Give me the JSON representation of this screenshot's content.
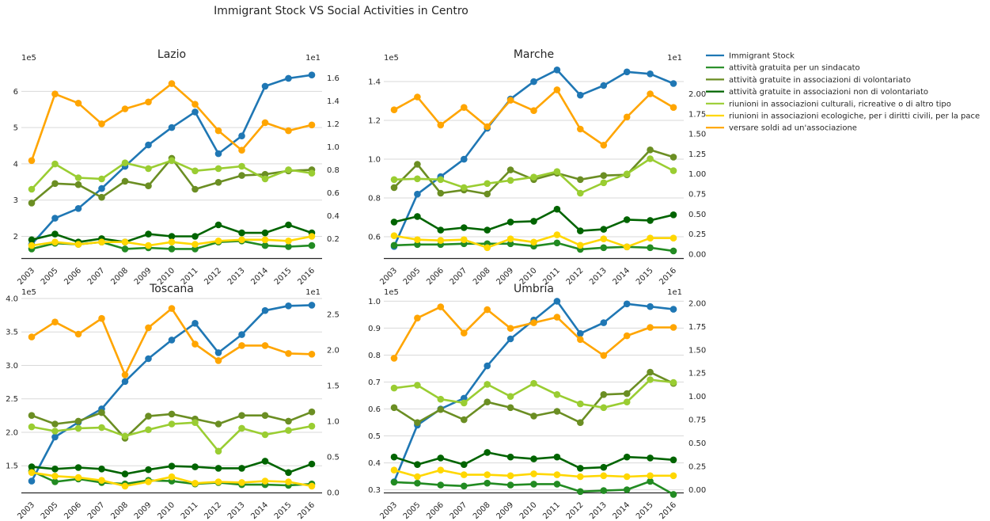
{
  "figure": {
    "suptitle": "Immigrant Stock VS Social Activities in Centro",
    "left_scale_label": "1e5",
    "right_scale_label": "1e1"
  },
  "legend": {
    "placement": "upper-right outside",
    "entries": [
      {
        "label": "Immigrant Stock",
        "color": "#1f77b4"
      },
      {
        "label": "attività gratuita per un sindacato",
        "color": "#228b22"
      },
      {
        "label": "attività gratuite in associazioni di volontariato",
        "color": "#6b8e23"
      },
      {
        "label": "attività gratuite in associazioni non di volontariato",
        "color": "#006400"
      },
      {
        "label": "riunioni in associazioni culturali, ricreative o di altro tipo",
        "color": "#9acd32"
      },
      {
        "label": "riunioni in associazioni ecologiche, per i diritti civili, per la pace",
        "color": "#ffd700"
      },
      {
        "label": "versare soldi ad un'associazione",
        "color": "#ffa500"
      }
    ]
  },
  "chart_data": [
    {
      "type": "line",
      "title": "Lazio",
      "categories": [
        "2003",
        "2005",
        "2006",
        "2007",
        "2008",
        "2009",
        "2010",
        "2011",
        "2012",
        "2013",
        "2014",
        "2015",
        "2016"
      ],
      "left_axis": {
        "multiplier": "1e5",
        "ylim": [
          1.4,
          6.75
        ],
        "ticks": [
          2,
          3,
          4,
          5,
          6
        ],
        "tick_labels": [
          "2",
          "3",
          "4",
          "5",
          "6"
        ]
      },
      "right_axis": {
        "multiplier": "1e1",
        "ylim": [
          0.03,
          1.72
        ],
        "ticks": [
          0.2,
          0.4,
          0.6,
          0.8,
          1.0,
          1.2,
          1.4,
          1.6
        ],
        "tick_labels": [
          "0.2",
          "0.4",
          "0.6",
          "0.8",
          "1.0",
          "1.2",
          "1.4",
          "1.6"
        ]
      },
      "series": [
        {
          "name": "Immigrant Stock",
          "axis": "left",
          "color": "#1f77b4",
          "values": [
            1.78,
            2.5,
            2.77,
            3.32,
            3.93,
            4.52,
            5.0,
            5.43,
            4.28,
            4.77,
            6.14,
            6.36,
            6.45
          ]
        },
        {
          "name": "attività gratuita per un sindacato",
          "axis": "right",
          "color": "#228b22",
          "values": [
            0.11,
            0.16,
            0.15,
            0.17,
            0.11,
            0.12,
            0.11,
            0.11,
            0.17,
            0.18,
            0.14,
            0.13,
            0.14
          ]
        },
        {
          "name": "attività gratuite in associazioni di volontariato",
          "axis": "right",
          "color": "#6b8e23",
          "values": [
            0.51,
            0.68,
            0.67,
            0.56,
            0.7,
            0.66,
            0.9,
            0.63,
            0.69,
            0.75,
            0.76,
            0.79,
            0.8
          ]
        },
        {
          "name": "attività gratuite in associazioni non di volontariato",
          "axis": "right",
          "color": "#006400",
          "values": [
            0.19,
            0.24,
            0.17,
            0.2,
            0.17,
            0.24,
            0.22,
            0.22,
            0.32,
            0.25,
            0.25,
            0.32,
            0.25
          ]
        },
        {
          "name": "riunioni in associazioni culturali, ricreative o di altro tipo",
          "axis": "right",
          "color": "#9acd32",
          "values": [
            0.63,
            0.85,
            0.73,
            0.72,
            0.86,
            0.81,
            0.88,
            0.79,
            0.81,
            0.83,
            0.72,
            0.8,
            0.77
          ]
        },
        {
          "name": "riunioni in associazioni ecologiche, per i diritti civili, per la pace",
          "axis": "right",
          "color": "#ffd700",
          "values": [
            0.14,
            0.17,
            0.15,
            0.17,
            0.17,
            0.14,
            0.17,
            0.15,
            0.18,
            0.19,
            0.19,
            0.18,
            0.22
          ]
        },
        {
          "name": "versare soldi ad un'associazione",
          "axis": "right",
          "color": "#ffa500",
          "values": [
            0.88,
            1.46,
            1.38,
            1.2,
            1.33,
            1.39,
            1.55,
            1.37,
            1.14,
            0.97,
            1.21,
            1.14,
            1.19
          ]
        }
      ]
    },
    {
      "type": "line",
      "title": "Marche",
      "categories": [
        "2003",
        "2005",
        "2006",
        "2007",
        "2008",
        "2009",
        "2010",
        "2011",
        "2012",
        "2013",
        "2014",
        "2015",
        "2016"
      ],
      "left_axis": {
        "multiplier": "1e5",
        "ylim": [
          0.49,
          1.49
        ],
        "ticks": [
          0.6,
          0.8,
          1.0,
          1.2,
          1.4
        ],
        "tick_labels": [
          "0.6",
          "0.8",
          "1.0",
          "1.2",
          "1.4"
        ]
      },
      "right_axis": {
        "multiplier": "1e1",
        "ylim": [
          -0.05,
          2.37
        ],
        "ticks": [
          0,
          0.25,
          0.5,
          0.75,
          1.0,
          1.25,
          1.5,
          1.75,
          2.0
        ],
        "tick_labels": [
          "0.00",
          "0.25",
          "0.50",
          "0.75",
          "1.00",
          "1.25",
          "1.50",
          "1.75",
          "2.00"
        ]
      },
      "series": [
        {
          "name": "Immigrant Stock",
          "axis": "left",
          "color": "#1f77b4",
          "values": [
            0.55,
            0.82,
            0.91,
            1.0,
            1.16,
            1.31,
            1.4,
            1.46,
            1.33,
            1.38,
            1.45,
            1.44,
            1.39
          ]
        },
        {
          "name": "attività gratuita per un sindacato",
          "axis": "right",
          "color": "#228b22",
          "values": [
            0.11,
            0.12,
            0.12,
            0.13,
            0.13,
            0.13,
            0.1,
            0.14,
            0.06,
            0.08,
            0.09,
            0.08,
            0.04
          ]
        },
        {
          "name": "attività gratuite in associazioni di volontariato",
          "axis": "right",
          "color": "#6b8e23",
          "values": [
            0.83,
            1.12,
            0.76,
            0.8,
            0.75,
            1.05,
            0.93,
            1.01,
            0.93,
            0.98,
            0.99,
            1.3,
            1.21
          ]
        },
        {
          "name": "attività gratuite in associazioni non di volontariato",
          "axis": "right",
          "color": "#006400",
          "values": [
            0.4,
            0.47,
            0.3,
            0.33,
            0.3,
            0.4,
            0.41,
            0.56,
            0.29,
            0.31,
            0.43,
            0.42,
            0.49
          ]
        },
        {
          "name": "riunioni in associazioni culturali, ricreative o di altro tipo",
          "axis": "right",
          "color": "#9acd32",
          "values": [
            0.93,
            0.94,
            0.93,
            0.83,
            0.88,
            0.92,
            0.96,
            1.03,
            0.76,
            0.89,
            1.0,
            1.19,
            1.04
          ]
        },
        {
          "name": "riunioni in associazioni ecologiche, per i diritti civili, per la pace",
          "axis": "right",
          "color": "#ffd700",
          "values": [
            0.23,
            0.18,
            0.17,
            0.18,
            0.08,
            0.19,
            0.15,
            0.24,
            0.11,
            0.19,
            0.09,
            0.2,
            0.2
          ]
        },
        {
          "name": "versare soldi ad un'associazione",
          "axis": "right",
          "color": "#ffa500",
          "values": [
            1.8,
            1.96,
            1.61,
            1.83,
            1.59,
            1.92,
            1.79,
            2.05,
            1.56,
            1.36,
            1.71,
            2.0,
            1.83
          ]
        }
      ]
    },
    {
      "type": "line",
      "title": "Toscana",
      "categories": [
        "2003",
        "2005",
        "2006",
        "2007",
        "2008",
        "2009",
        "2010",
        "2011",
        "2012",
        "2013",
        "2014",
        "2015",
        "2016"
      ],
      "left_axis": {
        "multiplier": "1e5",
        "ylim": [
          1.1,
          4.0
        ],
        "ticks": [
          1.5,
          2.0,
          2.5,
          3.0,
          3.5,
          4.0
        ],
        "tick_labels": [
          "1.5",
          "2.0",
          "2.5",
          "3.0",
          "3.5",
          "4.0"
        ]
      },
      "right_axis": {
        "multiplier": "1e1",
        "ylim": [
          0.0,
          2.72
        ],
        "ticks": [
          0,
          0.5,
          1.0,
          1.5,
          2.0,
          2.5
        ],
        "tick_labels": [
          "0.0",
          "0.5",
          "1.0",
          "1.5",
          "2.0",
          "2.5"
        ]
      },
      "series": [
        {
          "name": "Immigrant Stock",
          "axis": "left",
          "color": "#1f77b4",
          "values": [
            1.27,
            1.93,
            2.15,
            2.35,
            2.76,
            3.1,
            3.38,
            3.63,
            3.19,
            3.46,
            3.82,
            3.89,
            3.9
          ]
        },
        {
          "name": "attività gratuita per un sindacato",
          "axis": "right",
          "color": "#228b22",
          "values": [
            0.3,
            0.15,
            0.19,
            0.14,
            0.12,
            0.17,
            0.16,
            0.12,
            0.14,
            0.11,
            0.11,
            0.1,
            0.12
          ]
        },
        {
          "name": "attività gratuite in associazioni di volontariato",
          "axis": "right",
          "color": "#6b8e23",
          "values": [
            1.08,
            0.96,
            1.0,
            1.12,
            0.76,
            1.07,
            1.1,
            1.03,
            0.96,
            1.08,
            1.08,
            1.0,
            1.13
          ]
        },
        {
          "name": "attività gratuite in associazioni non di volontariato",
          "axis": "right",
          "color": "#006400",
          "values": [
            0.36,
            0.33,
            0.35,
            0.33,
            0.26,
            0.32,
            0.37,
            0.36,
            0.34,
            0.34,
            0.44,
            0.28,
            0.4
          ]
        },
        {
          "name": "riunioni in associazioni culturali, ricreative o di altro tipo",
          "axis": "right",
          "color": "#9acd32",
          "values": [
            0.92,
            0.86,
            0.9,
            0.91,
            0.79,
            0.88,
            0.96,
            0.98,
            0.58,
            0.9,
            0.81,
            0.87,
            0.93
          ]
        },
        {
          "name": "riunioni in associazioni ecologiche, per i diritti civili, per la pace",
          "axis": "right",
          "color": "#ffd700",
          "values": [
            0.28,
            0.23,
            0.21,
            0.17,
            0.09,
            0.15,
            0.22,
            0.13,
            0.15,
            0.14,
            0.16,
            0.15,
            0.09
          ]
        },
        {
          "name": "versare soldi ad un'associazione",
          "axis": "right",
          "color": "#ffa500",
          "values": [
            2.18,
            2.39,
            2.22,
            2.44,
            1.65,
            2.31,
            2.58,
            2.08,
            1.85,
            2.06,
            2.06,
            1.95,
            1.94
          ]
        }
      ]
    },
    {
      "type": "line",
      "title": "Umbria",
      "categories": [
        "2003",
        "2005",
        "2006",
        "2007",
        "2008",
        "2009",
        "2010",
        "2011",
        "2012",
        "2013",
        "2014",
        "2015",
        "2016"
      ],
      "left_axis": {
        "multiplier": "1e5",
        "ylim": [
          0.29,
          1.01
        ],
        "ticks": [
          0.3,
          0.4,
          0.5,
          0.6,
          0.7,
          0.8,
          0.9,
          1.0
        ],
        "tick_labels": [
          "0.3",
          "0.4",
          "0.5",
          "0.6",
          "0.7",
          "0.8",
          "0.9",
          "1.0"
        ]
      },
      "right_axis": {
        "multiplier": "1e1",
        "ylim": [
          -0.03,
          2.05
        ],
        "ticks": [
          0,
          0.25,
          0.5,
          0.75,
          1.0,
          1.25,
          1.5,
          1.75,
          2.0
        ],
        "tick_labels": [
          "0.00",
          "0.25",
          "0.50",
          "0.75",
          "1.00",
          "1.25",
          "1.50",
          "1.75",
          "2.00"
        ]
      },
      "series": [
        {
          "name": "Immigrant Stock",
          "axis": "left",
          "color": "#1f77b4",
          "values": [
            0.33,
            0.54,
            0.6,
            0.64,
            0.76,
            0.86,
            0.93,
            1.0,
            0.88,
            0.92,
            0.99,
            0.98,
            0.97
          ]
        },
        {
          "name": "attività gratuita per un sindacato",
          "axis": "right",
          "color": "#228b22",
          "values": [
            0.08,
            0.07,
            0.05,
            0.04,
            0.07,
            0.05,
            0.06,
            0.06,
            -0.02,
            -0.01,
            0.0,
            0.09,
            -0.05
          ]
        },
        {
          "name": "attività gratuite in associazioni di volontariato",
          "axis": "right",
          "color": "#6b8e23",
          "values": [
            0.88,
            0.72,
            0.86,
            0.75,
            0.94,
            0.88,
            0.79,
            0.84,
            0.72,
            1.02,
            1.03,
            1.26,
            1.14
          ]
        },
        {
          "name": "attività gratuite in associazioni non di volontariato",
          "axis": "right",
          "color": "#006400",
          "values": [
            0.35,
            0.27,
            0.34,
            0.27,
            0.4,
            0.35,
            0.33,
            0.35,
            0.23,
            0.24,
            0.35,
            0.34,
            0.32
          ]
        },
        {
          "name": "riunioni in associazioni culturali, ricreative o di altro tipo",
          "axis": "right",
          "color": "#9acd32",
          "values": [
            1.09,
            1.12,
            0.97,
            0.93,
            1.13,
            1.0,
            1.14,
            1.02,
            0.92,
            0.88,
            0.94,
            1.18,
            1.15
          ]
        },
        {
          "name": "riunioni in associazioni ecologiche, per i diritti civili, per la pace",
          "axis": "right",
          "color": "#ffd700",
          "values": [
            0.21,
            0.14,
            0.21,
            0.16,
            0.16,
            0.15,
            0.17,
            0.16,
            0.14,
            0.15,
            0.14,
            0.15,
            0.15
          ]
        },
        {
          "name": "versare soldi ad un'associazione",
          "axis": "right",
          "color": "#ffa500",
          "values": [
            1.41,
            1.84,
            1.96,
            1.68,
            1.93,
            1.73,
            1.79,
            1.85,
            1.61,
            1.44,
            1.65,
            1.74,
            1.74
          ]
        }
      ]
    }
  ]
}
